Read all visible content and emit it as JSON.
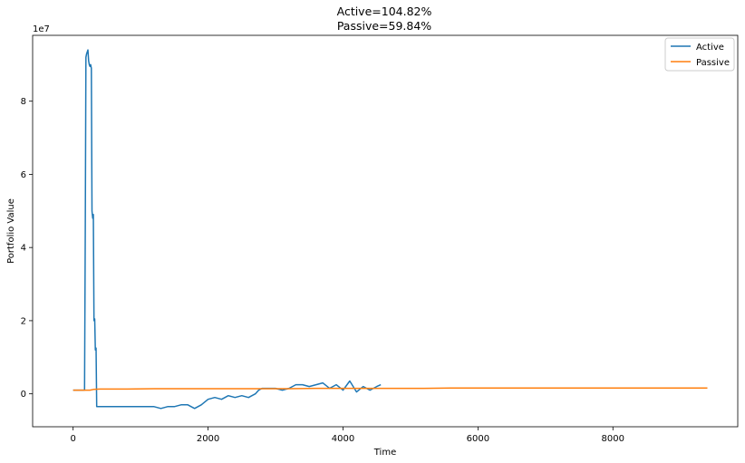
{
  "chart_data": {
    "type": "line",
    "title_lines": [
      "Active=104.82%",
      "Passive=59.84%"
    ],
    "xlabel": "Time",
    "ylabel": "Portfolio Value",
    "y_offset_text": "1e7",
    "xlim": [
      -600,
      9850
    ],
    "ylim": [
      -0.9,
      9.8
    ],
    "x_ticks": [
      0,
      2000,
      4000,
      6000,
      8000
    ],
    "x_tick_labels": [
      "0",
      "2000",
      "4000",
      "6000",
      "8000"
    ],
    "y_ticks": [
      0,
      2,
      4,
      6,
      8
    ],
    "y_tick_labels": [
      "0",
      "2",
      "4",
      "6",
      "8"
    ],
    "grid": false,
    "legend_position": "top-right",
    "series": [
      {
        "name": "Active",
        "color": "#1f77b4",
        "x": [
          0,
          170,
          180,
          190,
          200,
          210,
          220,
          230,
          240,
          250,
          260,
          270,
          280,
          290,
          300,
          310,
          320,
          330,
          340,
          350,
          360,
          370,
          380,
          390,
          400,
          600,
          800,
          1000,
          1200,
          1300,
          1400,
          1500,
          1600,
          1700,
          1800,
          1900,
          2000,
          2100,
          2200,
          2300,
          2400,
          2500,
          2600,
          2700,
          2750,
          2800,
          2900,
          3000,
          3100,
          3200,
          3300,
          3400,
          3500,
          3600,
          3700,
          3800,
          3900,
          4000,
          4100,
          4200,
          4300,
          4400,
          4500,
          4560
        ],
        "y": [
          0.1,
          0.1,
          4.5,
          9.2,
          9.3,
          9.35,
          9.4,
          9.1,
          9.0,
          8.95,
          9.0,
          8.9,
          5.0,
          4.8,
          4.9,
          2.0,
          2.05,
          1.2,
          1.25,
          -0.35,
          -0.35,
          -0.35,
          -0.35,
          -0.35,
          -0.35,
          -0.35,
          -0.35,
          -0.35,
          -0.35,
          -0.4,
          -0.35,
          -0.35,
          -0.3,
          -0.3,
          -0.4,
          -0.3,
          -0.15,
          -0.1,
          -0.15,
          -0.05,
          -0.1,
          -0.05,
          -0.1,
          0.0,
          0.1,
          0.15,
          0.15,
          0.15,
          0.1,
          0.15,
          0.25,
          0.25,
          0.2,
          0.25,
          0.3,
          0.15,
          0.25,
          0.1,
          0.35,
          0.05,
          0.2,
          0.1,
          0.2,
          0.25
        ]
      },
      {
        "name": "Passive",
        "color": "#ff7f0e",
        "x": [
          0,
          250,
          300,
          400,
          800,
          1200,
          1600,
          2000,
          2400,
          2800,
          3200,
          3600,
          4000,
          4400,
          4800,
          5200,
          5600,
          6000,
          6400,
          6800,
          7200,
          7600,
          8000,
          8400,
          8800,
          9200,
          9400
        ],
        "y": [
          0.1,
          0.1,
          0.12,
          0.13,
          0.13,
          0.14,
          0.14,
          0.14,
          0.14,
          0.14,
          0.14,
          0.15,
          0.15,
          0.15,
          0.15,
          0.15,
          0.16,
          0.16,
          0.16,
          0.16,
          0.16,
          0.16,
          0.16,
          0.16,
          0.16,
          0.16,
          0.16
        ]
      }
    ]
  }
}
